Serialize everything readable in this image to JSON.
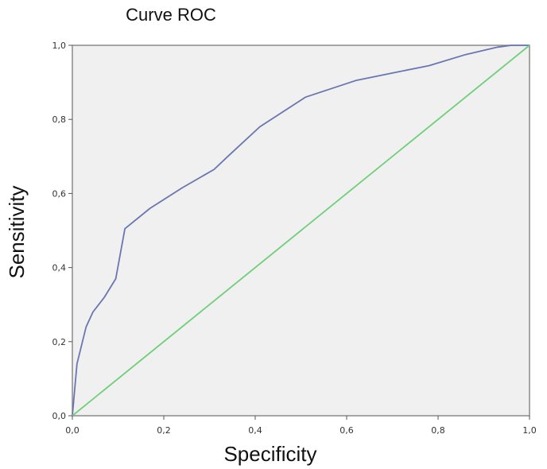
{
  "chart_data": {
    "type": "line",
    "title": "Curve ROC",
    "xlabel": "Specificity",
    "ylabel": "Sensitivity",
    "xlim": [
      0,
      1
    ],
    "ylim": [
      0,
      1
    ],
    "x_ticks": [
      "0,0",
      "0,2",
      "0,4",
      "0,6",
      "0,8",
      "1,0"
    ],
    "y_ticks": [
      "0,0",
      "0,2",
      "0,4",
      "0,6",
      "0,8",
      "1,0"
    ],
    "grid": false,
    "legend": "none",
    "background_color": "#f0f0f0",
    "series": [
      {
        "color": "#6a76b0",
        "x": [
          0.0,
          0.01,
          0.03,
          0.045,
          0.07,
          0.095,
          0.115,
          0.17,
          0.24,
          0.31,
          0.34,
          0.41,
          0.51,
          0.62,
          0.7,
          0.78,
          0.86,
          0.93,
          0.96,
          1.0
        ],
        "y": [
          0.0,
          0.14,
          0.24,
          0.28,
          0.32,
          0.37,
          0.505,
          0.56,
          0.615,
          0.665,
          0.7,
          0.78,
          0.86,
          0.905,
          0.925,
          0.945,
          0.975,
          0.995,
          1.0,
          1.0
        ]
      },
      {
        "color": "#6fcf7a",
        "x": [
          0.0,
          1.0
        ],
        "y": [
          0.0,
          1.0
        ]
      }
    ]
  }
}
